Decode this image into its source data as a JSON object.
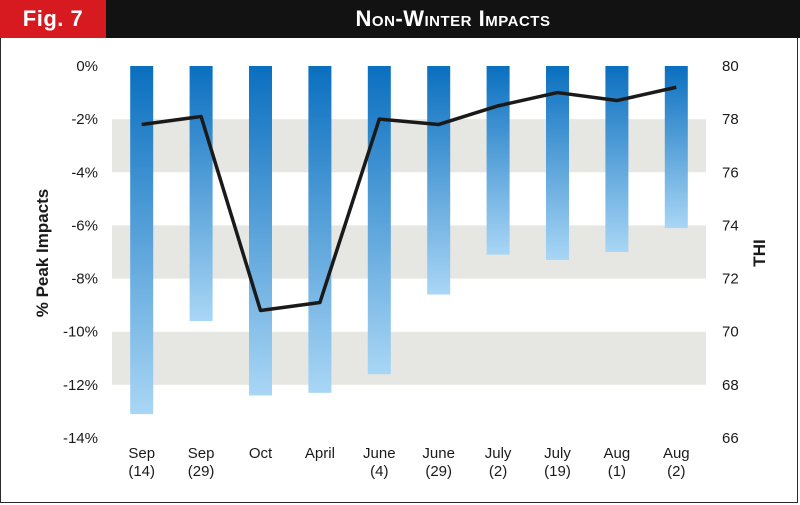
{
  "header": {
    "figure_label": "Fig. 7",
    "title": "Non-Winter Impacts"
  },
  "chart_data": {
    "type": "bar",
    "categories": [
      [
        "Sep",
        "(14)"
      ],
      [
        "Sep",
        "(29)"
      ],
      [
        "Oct",
        ""
      ],
      [
        "April",
        ""
      ],
      [
        "June",
        "(4)"
      ],
      [
        "June",
        "(29)"
      ],
      [
        "July",
        "(2)"
      ],
      [
        "July",
        "(19)"
      ],
      [
        "Aug",
        "(1)"
      ],
      [
        "Aug",
        "(2)"
      ]
    ],
    "series": [
      {
        "type": "bar",
        "axis": "left",
        "values": [
          -13.1,
          -9.6,
          -12.4,
          -12.3,
          -11.6,
          -8.6,
          -7.1,
          -7.3,
          -7.0,
          -6.1
        ]
      },
      {
        "type": "line",
        "axis": "right",
        "values": [
          77.8,
          78.1,
          70.8,
          71.1,
          78.0,
          77.8,
          78.5,
          79.0,
          78.7,
          79.2
        ]
      }
    ],
    "ylabel": "% Peak Impacts",
    "y2label": "THI",
    "ylim": [
      -14,
      0
    ],
    "y2lim": [
      66,
      80
    ],
    "y_ticks": [
      "0%",
      "-2%",
      "-4%",
      "-6%",
      "-8%",
      "-10%",
      "-12%",
      "-14%"
    ],
    "y2_ticks": [
      "80",
      "78",
      "76",
      "74",
      "72",
      "70",
      "68",
      "66"
    ],
    "grid": "alternating horizontal bands",
    "colors": {
      "bar_top": "#0a6fbf",
      "bar_bottom": "#a9d6f5",
      "band": "#e6e6e2",
      "line": "#1a1a1a",
      "badge": "#d71920",
      "header": "#121212"
    }
  }
}
